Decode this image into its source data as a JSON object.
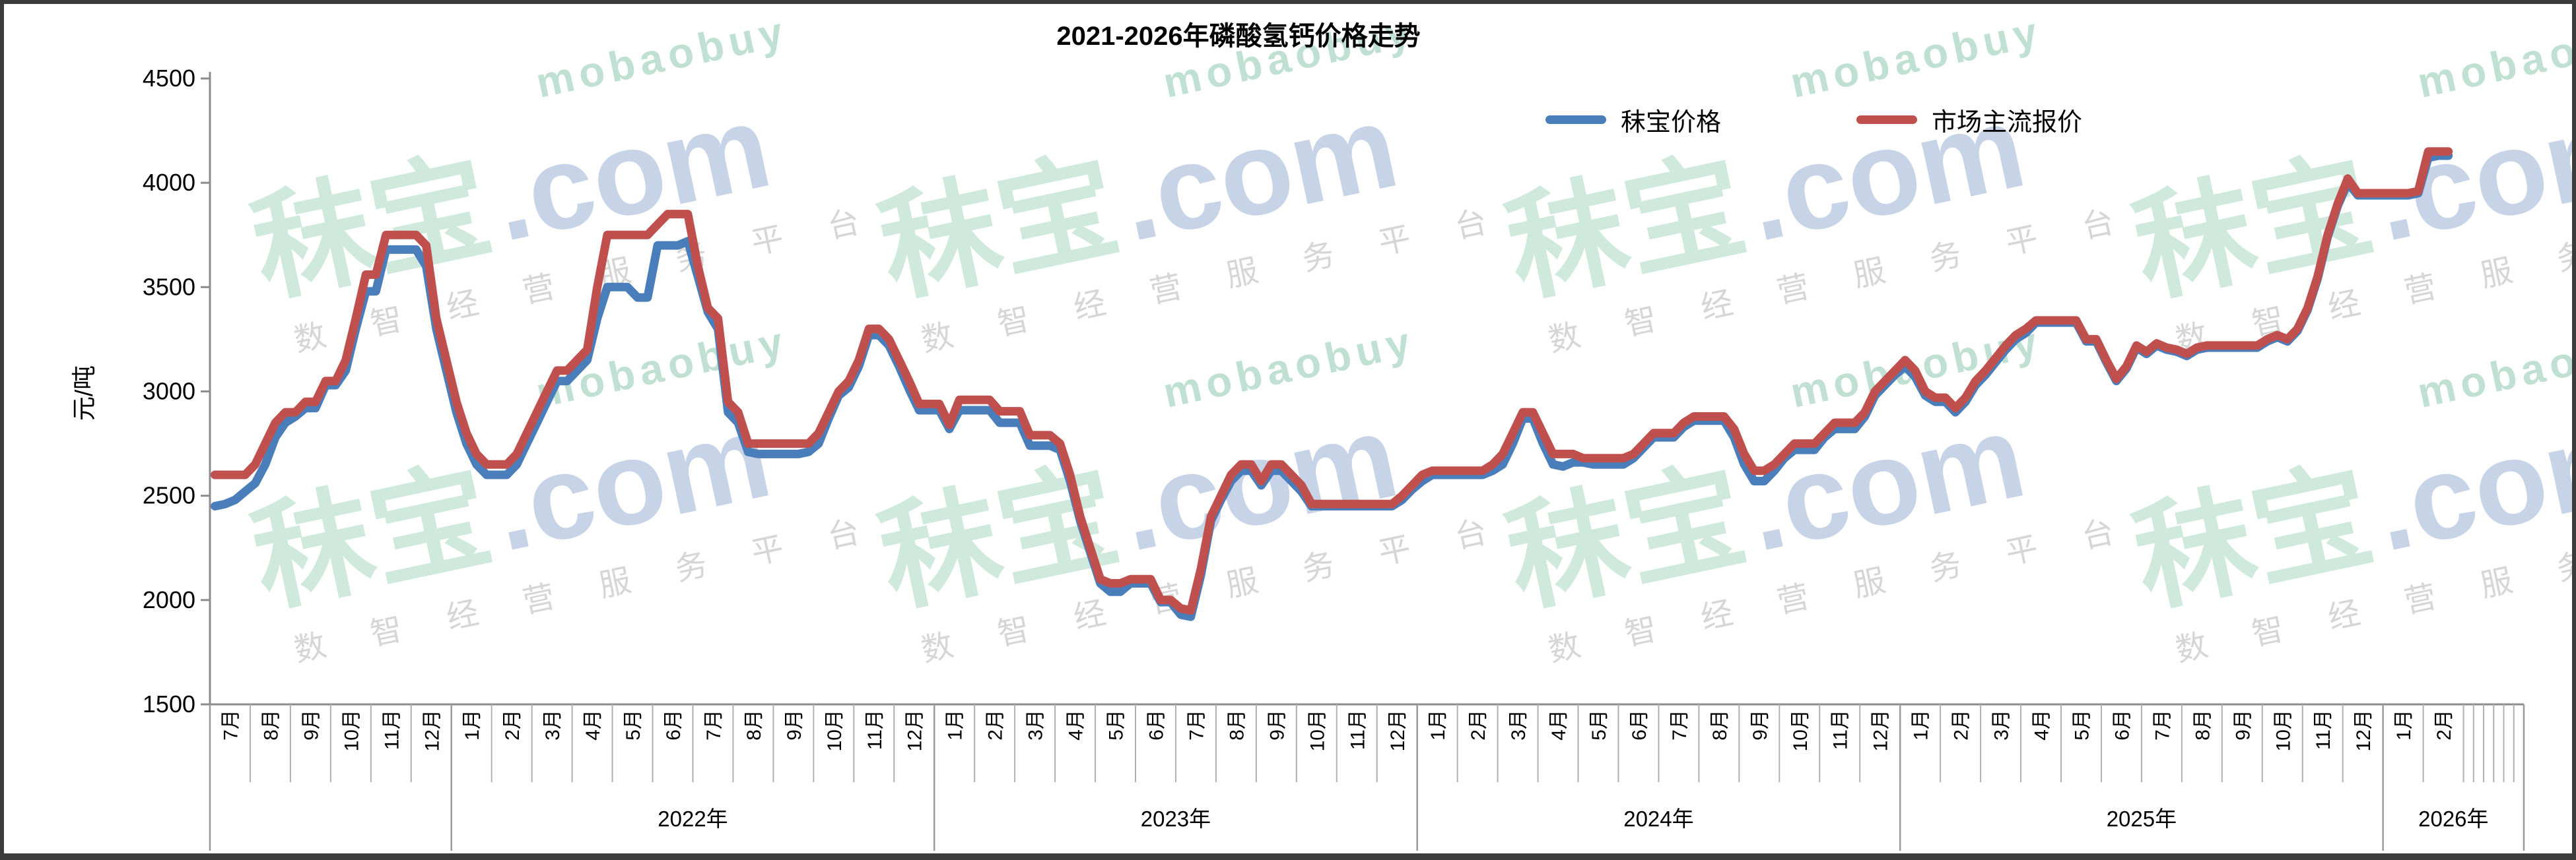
{
  "frame": {
    "border_color": "#3b3b3b",
    "background": "#ffffff"
  },
  "axis_style": {
    "axis_color": "#8c8c8c",
    "tick_color": "#b0b0b0",
    "separator_color": "#9a9a9a",
    "label_color": "#000000"
  },
  "watermark": {
    "brand_cn": "秣宝",
    "brand_suffix": ".com",
    "brand_latin": "mobaobuy",
    "tagline_chars": [
      "数",
      "智",
      "经",
      "营",
      "服",
      "务",
      "平",
      "台"
    ],
    "color_green": "#cfe9dd",
    "color_blue": "#c7d3e6",
    "color_latin": "#bfe0d2",
    "color_gray": "#d6d6d6"
  },
  "chart_data": {
    "type": "line",
    "title": "2021-2026年磷酸氢钙价格走势",
    "xlabel": "",
    "ylabel": "元/吨",
    "ylim": [
      1500,
      4500
    ],
    "yticks": [
      4500,
      4000,
      3500,
      3000,
      2500,
      2000,
      1500
    ],
    "grid": "off",
    "legend_position": "top",
    "points_per_month": 4,
    "axis_slots": 230,
    "x_years": [
      {
        "label": "",
        "months": [
          "7月",
          "8月",
          "9月",
          "10月",
          "11月",
          "12月"
        ]
      },
      {
        "label": "2022年",
        "months": [
          "1月",
          "2月",
          "3月",
          "4月",
          "5月",
          "6月",
          "7月",
          "8月",
          "9月",
          "10月",
          "11月",
          "12月"
        ]
      },
      {
        "label": "2023年",
        "months": [
          "1月",
          "2月",
          "3月",
          "4月",
          "5月",
          "6月",
          "7月",
          "8月",
          "9月",
          "10月",
          "11月",
          "12月"
        ]
      },
      {
        "label": "2024年",
        "months": [
          "1月",
          "2月",
          "3月",
          "4月",
          "5月",
          "6月",
          "7月",
          "8月",
          "9月",
          "10月",
          "11月",
          "12月"
        ]
      },
      {
        "label": "2025年",
        "months": [
          "1月",
          "2月",
          "3月",
          "4月",
          "5月",
          "6月",
          "7月",
          "8月",
          "9月",
          "10月",
          "11月",
          "12月"
        ]
      },
      {
        "label": "2026年",
        "months": [
          "1月",
          "2月"
        ]
      }
    ],
    "series": [
      {
        "name": "秣宝价格",
        "color": "#4a7ebb",
        "values": [
          2450,
          2460,
          2480,
          2520,
          2560,
          2650,
          2780,
          2850,
          2880,
          2920,
          2920,
          3030,
          3030,
          3100,
          3300,
          3480,
          3480,
          3680,
          3680,
          3680,
          3680,
          3600,
          3300,
          3100,
          2900,
          2750,
          2650,
          2600,
          2600,
          2600,
          2650,
          2750,
          2850,
          2950,
          3050,
          3050,
          3100,
          3150,
          3350,
          3500,
          3500,
          3500,
          3450,
          3450,
          3700,
          3700,
          3700,
          3720,
          3550,
          3380,
          3300,
          2900,
          2850,
          2710,
          2700,
          2700,
          2700,
          2700,
          2700,
          2710,
          2750,
          2870,
          2980,
          3020,
          3120,
          3270,
          3270,
          3220,
          3120,
          3010,
          2910,
          2910,
          2910,
          2820,
          2910,
          2910,
          2910,
          2910,
          2850,
          2850,
          2850,
          2740,
          2740,
          2740,
          2720,
          2570,
          2380,
          2230,
          2080,
          2040,
          2040,
          2080,
          2080,
          2080,
          1990,
          1990,
          1930,
          1920,
          2120,
          2380,
          2480,
          2570,
          2620,
          2620,
          2550,
          2620,
          2620,
          2570,
          2520,
          2450,
          2450,
          2450,
          2450,
          2450,
          2450,
          2450,
          2450,
          2450,
          2480,
          2530,
          2570,
          2600,
          2600,
          2600,
          2600,
          2600,
          2600,
          2620,
          2650,
          2750,
          2870,
          2870,
          2750,
          2650,
          2640,
          2660,
          2660,
          2650,
          2650,
          2650,
          2650,
          2680,
          2730,
          2780,
          2780,
          2780,
          2830,
          2860,
          2860,
          2860,
          2860,
          2780,
          2650,
          2570,
          2570,
          2620,
          2680,
          2720,
          2720,
          2720,
          2780,
          2820,
          2820,
          2820,
          2880,
          2980,
          3030,
          3080,
          3120,
          3070,
          2980,
          2950,
          2950,
          2900,
          2950,
          3030,
          3080,
          3140,
          3200,
          3250,
          3280,
          3330,
          3330,
          3330,
          3330,
          3330,
          3240,
          3240,
          3140,
          3050,
          3110,
          3210,
          3180,
          3220,
          3200,
          3190,
          3170,
          3200,
          3210,
          3210,
          3210,
          3210,
          3210,
          3210,
          3240,
          3260,
          3240,
          3290,
          3390,
          3540,
          3740,
          3890,
          4000,
          3940,
          3940,
          3940,
          3940,
          3940,
          3940,
          3950,
          4120,
          4130,
          4130
        ]
      },
      {
        "name": "市场主流报价",
        "color": "#c0504d",
        "values": [
          2600,
          2600,
          2600,
          2600,
          2650,
          2750,
          2850,
          2900,
          2900,
          2950,
          2950,
          3050,
          3050,
          3150,
          3350,
          3560,
          3560,
          3750,
          3750,
          3750,
          3750,
          3700,
          3350,
          3150,
          2950,
          2800,
          2700,
          2650,
          2650,
          2650,
          2700,
          2800,
          2900,
          3000,
          3100,
          3100,
          3150,
          3200,
          3500,
          3750,
          3750,
          3750,
          3750,
          3750,
          3800,
          3850,
          3850,
          3850,
          3600,
          3400,
          3350,
          2950,
          2900,
          2750,
          2750,
          2750,
          2750,
          2750,
          2750,
          2750,
          2800,
          2900,
          3000,
          3050,
          3150,
          3300,
          3300,
          3250,
          3150,
          3050,
          2940,
          2940,
          2940,
          2840,
          2960,
          2960,
          2960,
          2960,
          2905,
          2905,
          2905,
          2790,
          2790,
          2790,
          2750,
          2600,
          2400,
          2250,
          2100,
          2080,
          2080,
          2100,
          2100,
          2100,
          2000,
          2000,
          1960,
          1950,
          2150,
          2400,
          2500,
          2600,
          2650,
          2650,
          2570,
          2650,
          2650,
          2600,
          2550,
          2460,
          2460,
          2460,
          2460,
          2460,
          2460,
          2460,
          2460,
          2460,
          2500,
          2550,
          2600,
          2620,
          2620,
          2620,
          2620,
          2620,
          2620,
          2650,
          2700,
          2800,
          2900,
          2900,
          2800,
          2700,
          2700,
          2700,
          2680,
          2680,
          2680,
          2680,
          2680,
          2700,
          2750,
          2800,
          2800,
          2800,
          2850,
          2880,
          2880,
          2880,
          2880,
          2820,
          2700,
          2620,
          2620,
          2650,
          2700,
          2750,
          2750,
          2750,
          2800,
          2850,
          2850,
          2850,
          2900,
          3000,
          3050,
          3100,
          3150,
          3100,
          3000,
          2970,
          2970,
          2920,
          2970,
          3050,
          3100,
          3160,
          3220,
          3270,
          3300,
          3340,
          3340,
          3340,
          3340,
          3340,
          3250,
          3250,
          3150,
          3060,
          3120,
          3220,
          3190,
          3230,
          3210,
          3200,
          3180,
          3210,
          3220,
          3220,
          3220,
          3220,
          3220,
          3220,
          3250,
          3270,
          3250,
          3300,
          3400,
          3550,
          3750,
          3900,
          4020,
          3950,
          3950,
          3950,
          3950,
          3950,
          3950,
          3960,
          4150,
          4150,
          4150
        ]
      }
    ]
  }
}
